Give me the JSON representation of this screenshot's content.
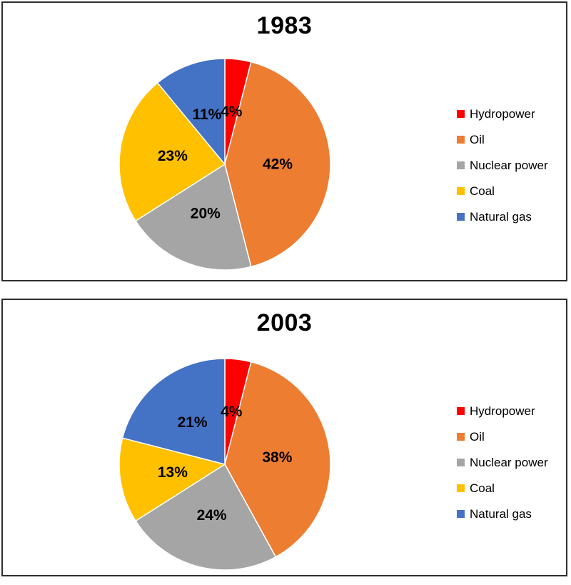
{
  "page": {
    "background_color": "#ffffff",
    "panel_border_color": "#2e2e2e"
  },
  "chart_data": [
    {
      "type": "pie",
      "title": "1983",
      "categories": [
        "Hydropower",
        "Oil",
        "Nuclear power",
        "Coal",
        "Natural gas"
      ],
      "values": [
        4,
        42,
        20,
        23,
        11
      ],
      "labels": [
        "4%",
        "42%",
        "20%",
        "23%",
        "11%"
      ],
      "colors": [
        "#FF0000",
        "#ED7D31",
        "#A5A5A5",
        "#FFC000",
        "#4472C4"
      ],
      "unit": "%",
      "start_angle_deg": 0,
      "direction": "clockwise",
      "label_radius_fraction": 0.5,
      "label_color": "#000000",
      "separator_color": "#FFFFFF",
      "legend_position": "right"
    },
    {
      "type": "pie",
      "title": "2003",
      "categories": [
        "Hydropower",
        "Oil",
        "Nuclear power",
        "Coal",
        "Natural gas"
      ],
      "values": [
        4,
        38,
        24,
        13,
        21
      ],
      "labels": [
        "4%",
        "38%",
        "24%",
        "13%",
        "21%"
      ],
      "colors": [
        "#FF0000",
        "#ED7D31",
        "#A5A5A5",
        "#FFC000",
        "#4472C4"
      ],
      "unit": "%",
      "start_angle_deg": 0,
      "direction": "clockwise",
      "label_radius_fraction": 0.5,
      "label_color": "#000000",
      "separator_color": "#FFFFFF",
      "legend_position": "right"
    }
  ]
}
